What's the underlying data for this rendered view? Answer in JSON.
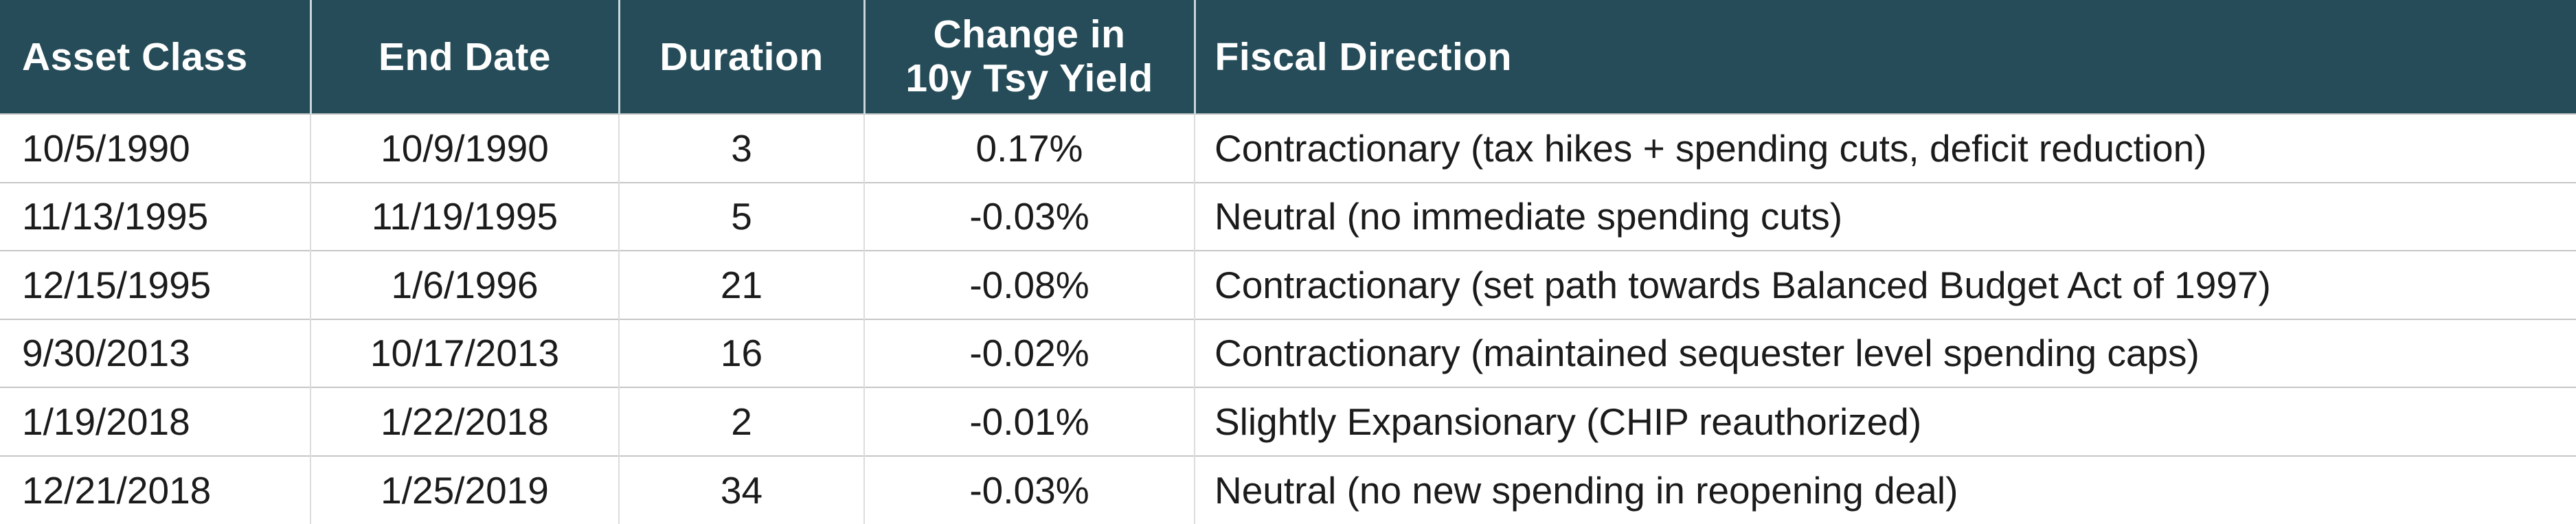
{
  "table": {
    "columns": [
      {
        "label": "Asset Class",
        "align": "left"
      },
      {
        "label": "End Date",
        "align": "center"
      },
      {
        "label": "Duration",
        "align": "center"
      },
      {
        "label": "Change in\n10y Tsy Yield",
        "align": "center"
      },
      {
        "label": "Fiscal Direction",
        "align": "left"
      }
    ],
    "rows": [
      [
        "10/5/1990",
        "10/9/1990",
        "3",
        "0.17%",
        "Contractionary (tax hikes + spending cuts, deficit reduction)"
      ],
      [
        "11/13/1995",
        "11/19/1995",
        "5",
        "-0.03%",
        "Neutral (no immediate spending cuts)"
      ],
      [
        "12/15/1995",
        "1/6/1996",
        "21",
        "-0.08%",
        "Contractionary (set path towards Balanced Budget Act of 1997)"
      ],
      [
        "9/30/2013",
        "10/17/2013",
        "16",
        "-0.02%",
        "Contractionary (maintained sequester level spending caps)"
      ],
      [
        "1/19/2018",
        "1/22/2018",
        "2",
        "-0.01%",
        "Slightly Expansionary (CHIP reauthorized)"
      ],
      [
        "12/21/2018",
        "1/25/2019",
        "34",
        "-0.03%",
        "Neutral (no new spending in reopening deal)"
      ]
    ],
    "colors": {
      "header_bg": "#254C58",
      "header_text": "#FFFFFF",
      "body_text": "#1B1B1B",
      "row_divider": "#C6C6C6",
      "column_divider": "#DCDCDC",
      "header_divider": "#C9D6DA"
    }
  }
}
